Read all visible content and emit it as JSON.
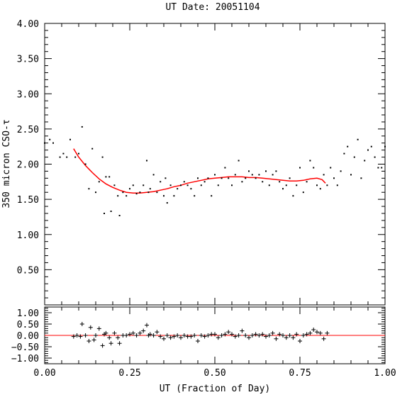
{
  "chart_data": [
    {
      "type": "scatter",
      "title": "UT Date: 20051104",
      "xlabel": "",
      "ylabel": "350 micron CSO-τ",
      "xlim": [
        0.0,
        1.0
      ],
      "ylim": [
        0.0,
        4.0
      ],
      "yticks": [
        "0.50",
        "1.00",
        "1.50",
        "2.00",
        "2.50",
        "3.00",
        "3.50",
        "4.00"
      ],
      "yticks_vals": [
        0.5,
        1.0,
        1.5,
        2.0,
        2.5,
        3.0,
        3.5,
        4.0
      ],
      "xticks_vals": [
        0.0,
        0.25,
        0.5,
        0.75,
        1.0
      ],
      "grid": false,
      "series": [
        {
          "marker": "dot",
          "color": "#000000",
          "x": [
            0.0,
            0.015,
            0.025,
            0.045,
            0.055,
            0.065,
            0.075,
            0.09,
            0.1,
            0.11,
            0.12,
            0.13,
            0.14,
            0.15,
            0.16,
            0.17,
            0.175,
            0.18,
            0.19,
            0.195,
            0.205,
            0.215,
            0.22,
            0.23,
            0.24,
            0.25,
            0.26,
            0.27,
            0.28,
            0.29,
            0.3,
            0.305,
            0.31,
            0.32,
            0.33,
            0.34,
            0.35,
            0.355,
            0.36,
            0.37,
            0.38,
            0.39,
            0.4,
            0.41,
            0.42,
            0.43,
            0.44,
            0.45,
            0.46,
            0.47,
            0.48,
            0.49,
            0.5,
            0.51,
            0.52,
            0.53,
            0.54,
            0.55,
            0.56,
            0.57,
            0.58,
            0.59,
            0.6,
            0.61,
            0.62,
            0.63,
            0.64,
            0.65,
            0.66,
            0.67,
            0.68,
            0.69,
            0.7,
            0.71,
            0.72,
            0.73,
            0.74,
            0.75,
            0.76,
            0.77,
            0.78,
            0.79,
            0.8,
            0.81,
            0.82,
            0.83,
            0.84,
            0.85,
            0.86,
            0.87,
            0.88,
            0.89,
            0.9,
            0.91,
            0.92,
            0.93,
            0.94,
            0.95,
            0.96,
            0.97,
            0.98,
            0.99,
            1.0
          ],
          "y": [
            2.3,
            2.35,
            2.3,
            2.1,
            2.15,
            2.1,
            2.35,
            2.1,
            2.15,
            2.53,
            2.0,
            1.65,
            2.22,
            1.6,
            1.75,
            2.1,
            1.3,
            1.82,
            1.82,
            1.33,
            1.7,
            1.55,
            1.27,
            1.6,
            1.55,
            1.65,
            1.7,
            1.58,
            1.6,
            1.7,
            2.05,
            1.6,
            1.65,
            1.85,
            1.6,
            1.75,
            1.55,
            1.8,
            1.45,
            1.7,
            1.55,
            1.65,
            1.7,
            1.75,
            1.7,
            1.65,
            1.55,
            1.8,
            1.7,
            1.75,
            1.8,
            1.55,
            1.85,
            1.7,
            1.8,
            1.95,
            1.8,
            1.7,
            1.85,
            2.05,
            1.75,
            1.8,
            1.9,
            1.85,
            1.8,
            1.85,
            1.75,
            1.9,
            1.7,
            1.85,
            1.9,
            1.75,
            1.65,
            1.7,
            1.8,
            1.55,
            1.7,
            1.95,
            1.6,
            1.75,
            2.05,
            1.95,
            1.7,
            1.65,
            1.85,
            1.7,
            1.95,
            1.8,
            1.7,
            1.9,
            2.15,
            2.25,
            1.85,
            2.1,
            2.35,
            1.8,
            2.05,
            2.2,
            2.25,
            2.1,
            1.95,
            1.95,
            2.25
          ]
        },
        {
          "marker": "line",
          "color": "#ff0000",
          "x": [
            0.085,
            0.1,
            0.12,
            0.14,
            0.16,
            0.18,
            0.2,
            0.22,
            0.24,
            0.26,
            0.28,
            0.3,
            0.32,
            0.34,
            0.36,
            0.38,
            0.4,
            0.42,
            0.44,
            0.46,
            0.48,
            0.5,
            0.52,
            0.54,
            0.56,
            0.58,
            0.6,
            0.62,
            0.64,
            0.66,
            0.68,
            0.7,
            0.72,
            0.74,
            0.76,
            0.78,
            0.8,
            0.815,
            0.825
          ],
          "y": [
            2.22,
            2.1,
            1.98,
            1.88,
            1.79,
            1.72,
            1.67,
            1.63,
            1.6,
            1.59,
            1.59,
            1.6,
            1.61,
            1.63,
            1.65,
            1.68,
            1.7,
            1.73,
            1.75,
            1.77,
            1.79,
            1.8,
            1.81,
            1.82,
            1.82,
            1.82,
            1.81,
            1.81,
            1.8,
            1.79,
            1.78,
            1.77,
            1.76,
            1.76,
            1.77,
            1.79,
            1.8,
            1.78,
            1.73
          ]
        }
      ]
    },
    {
      "type": "scatter",
      "title": "",
      "xlabel": "UT (Fraction of Day)",
      "ylabel": "",
      "xlim": [
        0.0,
        1.0
      ],
      "ylim": [
        -1.25,
        1.25
      ],
      "yticks": [
        "1.00",
        "0.50",
        "0.00",
        "−0.50",
        "−1.00"
      ],
      "yticks_vals": [
        1.0,
        0.5,
        0.0,
        -0.5,
        -1.0
      ],
      "xticks": [
        "0.00",
        "0.25",
        "0.50",
        "0.75",
        "1.00"
      ],
      "xticks_vals": [
        0.0,
        0.25,
        0.5,
        0.75,
        1.0
      ],
      "grid": false,
      "reference_line": {
        "y": 0.0,
        "color": "#ff0000"
      },
      "series": [
        {
          "marker": "plus",
          "color": "#000000",
          "x": [
            0.085,
            0.095,
            0.105,
            0.11,
            0.12,
            0.13,
            0.135,
            0.145,
            0.15,
            0.16,
            0.17,
            0.175,
            0.18,
            0.19,
            0.195,
            0.205,
            0.215,
            0.22,
            0.23,
            0.24,
            0.25,
            0.26,
            0.27,
            0.28,
            0.29,
            0.3,
            0.305,
            0.31,
            0.32,
            0.33,
            0.34,
            0.35,
            0.36,
            0.37,
            0.38,
            0.39,
            0.4,
            0.41,
            0.42,
            0.43,
            0.44,
            0.45,
            0.46,
            0.47,
            0.48,
            0.49,
            0.5,
            0.51,
            0.52,
            0.53,
            0.54,
            0.55,
            0.56,
            0.57,
            0.58,
            0.59,
            0.6,
            0.61,
            0.62,
            0.63,
            0.64,
            0.65,
            0.66,
            0.67,
            0.68,
            0.69,
            0.7,
            0.71,
            0.72,
            0.73,
            0.74,
            0.75,
            0.76,
            0.77,
            0.78,
            0.79,
            0.8,
            0.81,
            0.82,
            0.83
          ],
          "y": [
            -0.05,
            0.0,
            -0.05,
            0.5,
            0.0,
            -0.25,
            0.35,
            -0.2,
            0.0,
            0.3,
            -0.45,
            0.05,
            0.1,
            -0.1,
            -0.35,
            0.1,
            -0.1,
            -0.35,
            0.0,
            0.0,
            0.05,
            0.1,
            0.0,
            0.1,
            0.2,
            0.45,
            0.0,
            0.05,
            0.0,
            0.15,
            -0.05,
            -0.15,
            0.0,
            -0.1,
            -0.05,
            0.0,
            -0.1,
            0.0,
            -0.05,
            -0.05,
            0.0,
            -0.25,
            0.0,
            -0.05,
            0.0,
            0.05,
            0.05,
            -0.1,
            0.0,
            0.05,
            0.15,
            0.05,
            -0.05,
            0.0,
            0.2,
            0.0,
            -0.1,
            0.0,
            0.05,
            0.0,
            0.05,
            -0.05,
            0.0,
            0.1,
            -0.15,
            0.05,
            0.0,
            -0.1,
            0.0,
            -0.1,
            0.05,
            -0.25,
            0.0,
            0.05,
            0.1,
            0.25,
            0.15,
            0.1,
            -0.15,
            0.1
          ]
        }
      ]
    }
  ]
}
